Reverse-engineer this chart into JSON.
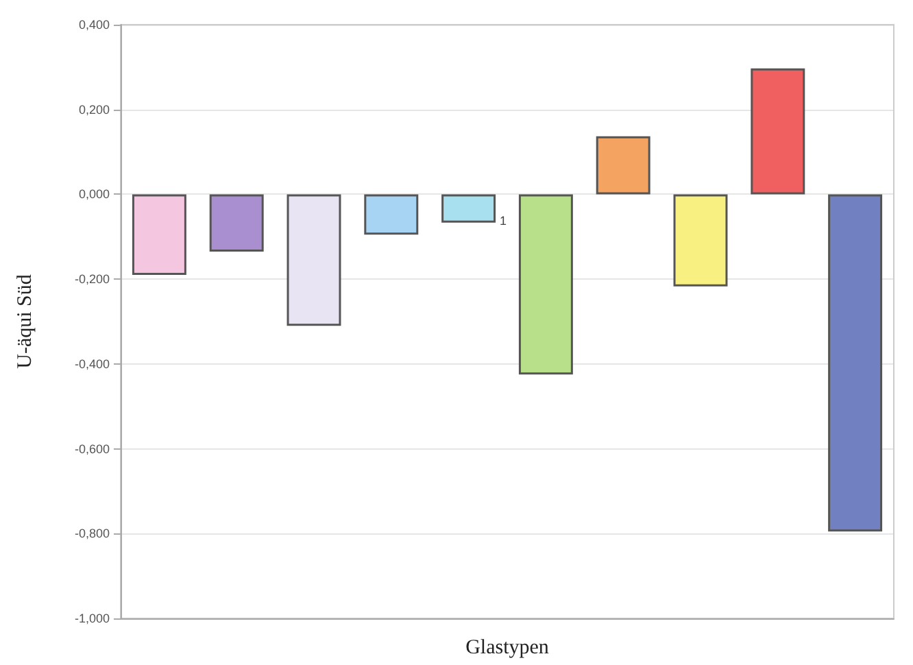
{
  "chart_data": {
    "type": "bar",
    "xlabel": "Glastypen",
    "ylabel": "U-äqui Süd",
    "categories": [
      null,
      null,
      null,
      null,
      null,
      null,
      null,
      null,
      null,
      null
    ],
    "values": [
      -0.19,
      -0.135,
      -0.31,
      -0.095,
      -0.067,
      -0.425,
      0.137,
      -0.217,
      0.297,
      -0.795
    ],
    "colors": [
      "#f4c6e0",
      "#a98fd0",
      "#e8e4f4",
      "#a8d4f4",
      "#a8e0f0",
      "#b8e08a",
      "#f4a460",
      "#f8f080",
      "#f06060",
      "#7080c0"
    ],
    "ylim": [
      -1,
      0.4
    ],
    "yticks": [
      {
        "value": -1,
        "label": "-1,000"
      },
      {
        "value": -0.8,
        "label": "-0,800"
      },
      {
        "value": -0.6,
        "label": "-0,600"
      },
      {
        "value": -0.4,
        "label": "-0,400"
      },
      {
        "value": -0.2,
        "label": "-0,200"
      },
      {
        "value": 0,
        "label": "0,000"
      },
      {
        "value": 0.2,
        "label": "0,200"
      },
      {
        "value": 0.4,
        "label": "0,400"
      }
    ],
    "annotations": [
      "1"
    ],
    "grid": "y"
  }
}
